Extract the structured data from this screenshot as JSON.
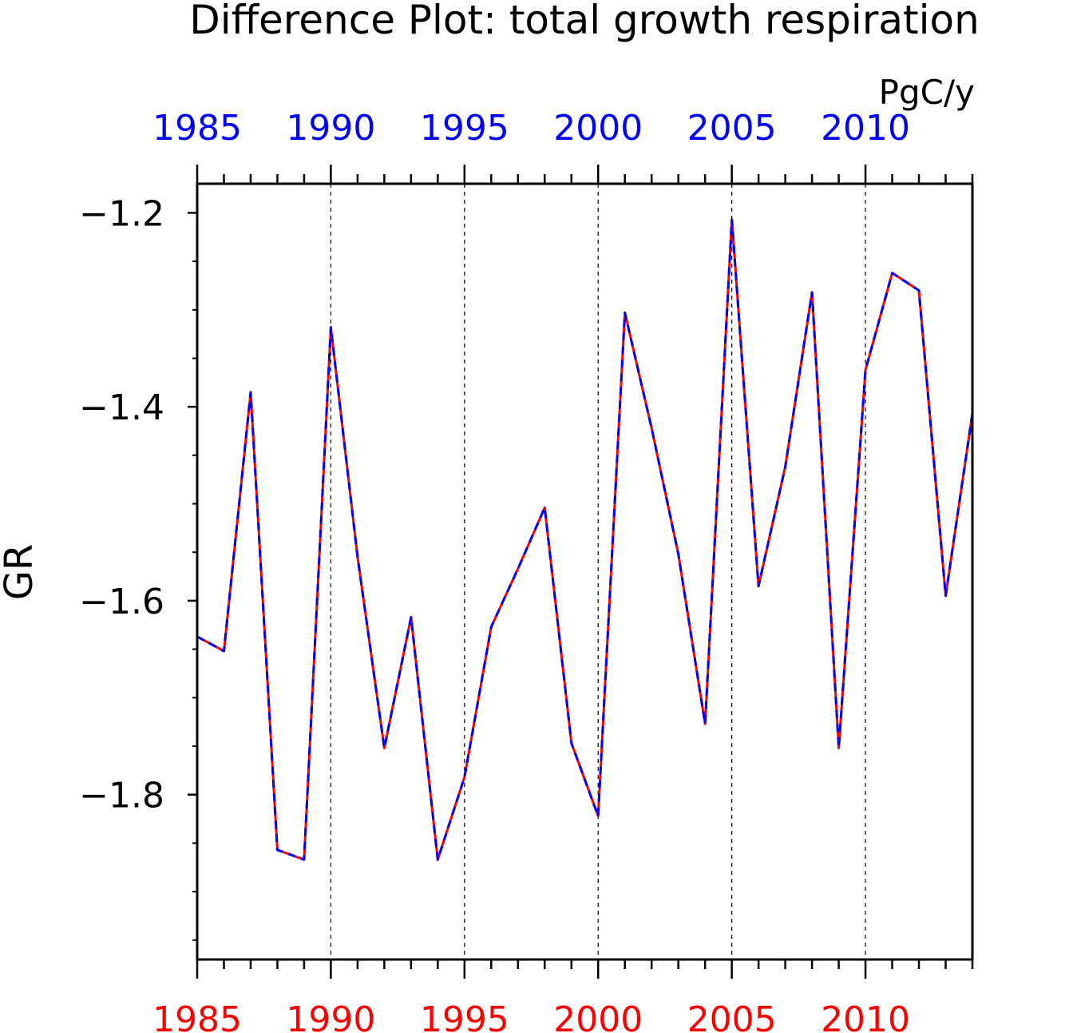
{
  "chart_data": {
    "type": "line",
    "title": "Difference Plot: total growth respiration",
    "units": "PgC/y",
    "ylabel": "GR",
    "xlim": [
      1985,
      2014
    ],
    "ylim": [
      -1.97,
      -1.17
    ],
    "y_major_ticks": [
      -1.2,
      -1.4,
      -1.6,
      -1.8
    ],
    "y_tick_labels": [
      "−1.2",
      "−1.4",
      "−1.6",
      "−1.8"
    ],
    "y_minor_ticks": [
      -1.25,
      -1.3,
      -1.35,
      -1.45,
      -1.5,
      -1.55,
      -1.65,
      -1.7,
      -1.75,
      -1.85,
      -1.9,
      -1.95
    ],
    "x_major_ticks": [
      1985,
      1990,
      1995,
      2000,
      2005,
      2010
    ],
    "x_tick_labels_top": [
      "1985",
      "1990",
      "1995",
      "2000",
      "2005",
      "2010"
    ],
    "x_tick_labels_bottom": [
      "1985",
      "1990",
      "1995",
      "2000",
      "2005",
      "2010"
    ],
    "gridlines_x": [
      1990,
      1995,
      2000,
      2005,
      2010
    ],
    "grid": "vertical dashed at major x ticks",
    "x": [
      1985,
      1986,
      1987,
      1988,
      1989,
      1990,
      1991,
      1992,
      1993,
      1994,
      1995,
      1996,
      1997,
      1998,
      1999,
      2000,
      2001,
      2002,
      2003,
      2004,
      2005,
      2006,
      2007,
      2008,
      2009,
      2010,
      2011,
      2012,
      2013,
      2014
    ],
    "series": [
      {
        "color": "#ff0000",
        "style": "solid",
        "values": [
          -1.637,
          -1.652,
          -1.385,
          -1.857,
          -1.867,
          -1.318,
          -1.555,
          -1.752,
          -1.617,
          -1.867,
          -1.782,
          -1.627,
          -1.567,
          -1.504,
          -1.747,
          -1.822,
          -1.303,
          -1.422,
          -1.552,
          -1.727,
          -1.207,
          -1.585,
          -1.462,
          -1.282,
          -1.752,
          -1.362,
          -1.262,
          -1.28,
          -1.595,
          -1.407
        ]
      },
      {
        "color": "#0000ff",
        "style": "dashed",
        "values": [
          -1.637,
          -1.652,
          -1.385,
          -1.857,
          -1.867,
          -1.318,
          -1.555,
          -1.752,
          -1.617,
          -1.867,
          -1.782,
          -1.627,
          -1.567,
          -1.504,
          -1.747,
          -1.822,
          -1.303,
          -1.422,
          -1.552,
          -1.727,
          -1.207,
          -1.585,
          -1.462,
          -1.282,
          -1.752,
          -1.362,
          -1.262,
          -1.28,
          -1.595,
          -1.407
        ]
      }
    ],
    "colors": {
      "top_axis_labels": "#0000ff",
      "bottom_axis_labels": "#ff0000",
      "axis": "#000000"
    }
  }
}
